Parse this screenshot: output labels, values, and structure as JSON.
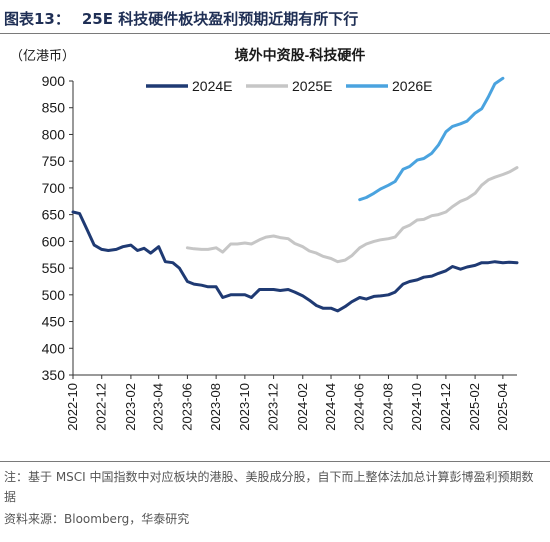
{
  "figure": {
    "label": "图表13：",
    "heading": "25E 科技硬件板块盈利预期近期有所下行",
    "note": "注：基于 MSCI 中国指数中对应板块的港股、美股成分股，自下而上整体法加总计算彭博盈利预期数据",
    "source": "资料来源：Bloomberg，华泰研究"
  },
  "chart_data": {
    "type": "line",
    "title": "境外中资股-科技硬件",
    "y_unit": "（亿港币）",
    "ylim": [
      350,
      900
    ],
    "yticks": [
      350,
      400,
      450,
      500,
      550,
      600,
      650,
      700,
      750,
      800,
      850,
      900
    ],
    "xlim": [
      "2022-10",
      "2025-05"
    ],
    "xticks": [
      "2022-10",
      "2022-12",
      "2023-02",
      "2023-04",
      "2023-06",
      "2023-08",
      "2023-10",
      "2023-12",
      "2024-02",
      "2024-04",
      "2024-06",
      "2024-08",
      "2024-10",
      "2024-12",
      "2025-02",
      "2025-04"
    ],
    "grid": false,
    "legend_position": "top",
    "series": [
      {
        "name": "2024E",
        "color": "#1f3a73",
        "points": [
          [
            "2022-10",
            655
          ],
          [
            "2022-10-15",
            652
          ],
          [
            "2022-11",
            620
          ],
          [
            "2022-11-15",
            593
          ],
          [
            "2022-12",
            585
          ],
          [
            "2022-12-15",
            583
          ],
          [
            "2023-01",
            585
          ],
          [
            "2023-01-15",
            590
          ],
          [
            "2023-02",
            593
          ],
          [
            "2023-02-15",
            583
          ],
          [
            "2023-03",
            587
          ],
          [
            "2023-03-15",
            578
          ],
          [
            "2023-04",
            590
          ],
          [
            "2023-04-15",
            562
          ],
          [
            "2023-05",
            560
          ],
          [
            "2023-05-15",
            550
          ],
          [
            "2023-06",
            525
          ],
          [
            "2023-06-15",
            520
          ],
          [
            "2023-07",
            518
          ],
          [
            "2023-07-15",
            515
          ],
          [
            "2023-08",
            515
          ],
          [
            "2023-08-15",
            495
          ],
          [
            "2023-09",
            500
          ],
          [
            "2023-09-15",
            500
          ],
          [
            "2023-10",
            500
          ],
          [
            "2023-10-15",
            495
          ],
          [
            "2023-11",
            510
          ],
          [
            "2023-11-15",
            510
          ],
          [
            "2023-12",
            510
          ],
          [
            "2023-12-15",
            508
          ],
          [
            "2024-01",
            510
          ],
          [
            "2024-01-15",
            505
          ],
          [
            "2024-02",
            498
          ],
          [
            "2024-02-15",
            490
          ],
          [
            "2024-03",
            480
          ],
          [
            "2024-03-15",
            475
          ],
          [
            "2024-04",
            475
          ],
          [
            "2024-04-15",
            470
          ],
          [
            "2024-05",
            478
          ],
          [
            "2024-05-15",
            487
          ],
          [
            "2024-06",
            495
          ],
          [
            "2024-06-15",
            492
          ],
          [
            "2024-07",
            497
          ],
          [
            "2024-07-15",
            498
          ],
          [
            "2024-08",
            500
          ],
          [
            "2024-08-15",
            505
          ],
          [
            "2024-09",
            520
          ],
          [
            "2024-09-15",
            525
          ],
          [
            "2024-10",
            528
          ],
          [
            "2024-10-15",
            533
          ],
          [
            "2024-11",
            535
          ],
          [
            "2024-11-15",
            540
          ],
          [
            "2024-12",
            545
          ],
          [
            "2024-12-15",
            553
          ],
          [
            "2025-01",
            548
          ],
          [
            "2025-01-15",
            552
          ],
          [
            "2025-02",
            555
          ],
          [
            "2025-02-15",
            560
          ],
          [
            "2025-03",
            560
          ],
          [
            "2025-03-15",
            562
          ],
          [
            "2025-04",
            560
          ],
          [
            "2025-04-15",
            561
          ],
          [
            "2025-05",
            560
          ]
        ]
      },
      {
        "name": "2025E",
        "color": "#c6c6c6",
        "points": [
          [
            "2023-06",
            588
          ],
          [
            "2023-06-15",
            586
          ],
          [
            "2023-07",
            585
          ],
          [
            "2023-07-15",
            585
          ],
          [
            "2023-08",
            588
          ],
          [
            "2023-08-15",
            580
          ],
          [
            "2023-09",
            595
          ],
          [
            "2023-09-15",
            595
          ],
          [
            "2023-10",
            597
          ],
          [
            "2023-10-15",
            595
          ],
          [
            "2023-11",
            603
          ],
          [
            "2023-11-15",
            608
          ],
          [
            "2023-12",
            610
          ],
          [
            "2023-12-15",
            607
          ],
          [
            "2024-01",
            605
          ],
          [
            "2024-01-15",
            596
          ],
          [
            "2024-02",
            590
          ],
          [
            "2024-02-15",
            582
          ],
          [
            "2024-03",
            578
          ],
          [
            "2024-03-15",
            572
          ],
          [
            "2024-04",
            568
          ],
          [
            "2024-04-15",
            562
          ],
          [
            "2024-05",
            565
          ],
          [
            "2024-05-15",
            573
          ],
          [
            "2024-06",
            588
          ],
          [
            "2024-06-15",
            595
          ],
          [
            "2024-07",
            600
          ],
          [
            "2024-07-15",
            603
          ],
          [
            "2024-08",
            605
          ],
          [
            "2024-08-15",
            608
          ],
          [
            "2024-09",
            625
          ],
          [
            "2024-09-15",
            630
          ],
          [
            "2024-10",
            640
          ],
          [
            "2024-10-15",
            641
          ],
          [
            "2024-11",
            648
          ],
          [
            "2024-11-15",
            650
          ],
          [
            "2024-12",
            655
          ],
          [
            "2024-12-15",
            665
          ],
          [
            "2025-01",
            675
          ],
          [
            "2025-01-15",
            680
          ],
          [
            "2025-02",
            690
          ],
          [
            "2025-02-15",
            705
          ],
          [
            "2025-03",
            715
          ],
          [
            "2025-03-15",
            720
          ],
          [
            "2025-04",
            725
          ],
          [
            "2025-04-15",
            730
          ],
          [
            "2025-05",
            738
          ]
        ]
      },
      {
        "name": "2026E",
        "color": "#4aa3df",
        "points": [
          [
            "2024-06",
            678
          ],
          [
            "2024-06-15",
            682
          ],
          [
            "2024-07",
            690
          ],
          [
            "2024-07-15",
            698
          ],
          [
            "2024-08",
            705
          ],
          [
            "2024-08-15",
            712
          ],
          [
            "2024-09",
            735
          ],
          [
            "2024-09-15",
            740
          ],
          [
            "2024-10",
            752
          ],
          [
            "2024-10-15",
            755
          ],
          [
            "2024-11",
            765
          ],
          [
            "2024-11-15",
            780
          ],
          [
            "2024-12",
            805
          ],
          [
            "2024-12-15",
            815
          ],
          [
            "2025-01",
            820
          ],
          [
            "2025-01-15",
            825
          ],
          [
            "2025-02",
            840
          ],
          [
            "2025-02-15",
            848
          ],
          [
            "2025-03",
            870
          ],
          [
            "2025-03-15",
            895
          ],
          [
            "2025-04",
            905
          ]
        ]
      }
    ]
  }
}
